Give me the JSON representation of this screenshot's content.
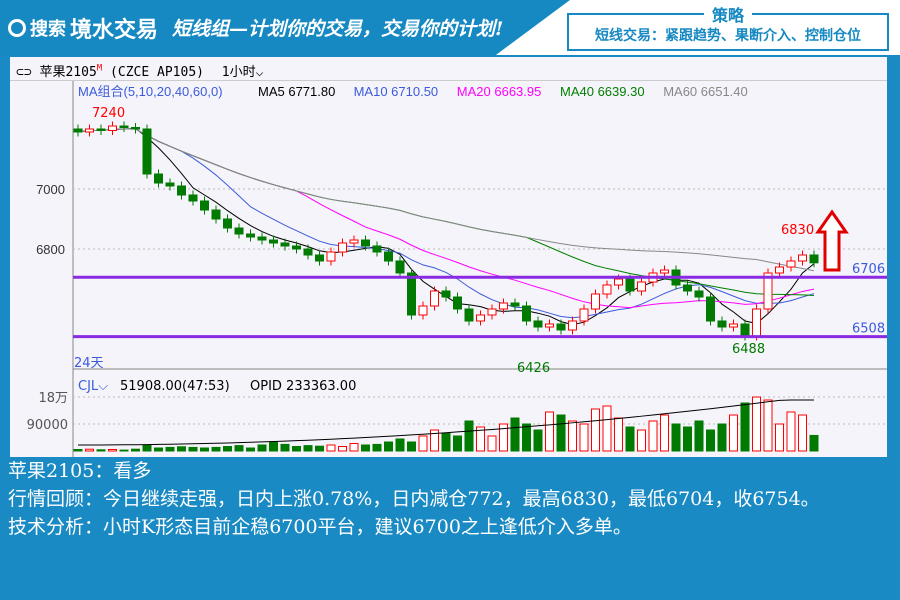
{
  "banner": {
    "logo_search": "搜索",
    "logo_brand": "境水交易",
    "slogan": "短线组—计划你的交易，交易你的计划!",
    "strategy_title": "策略",
    "strategy_text": "短线交易：紧跟趋势、果断介入、控制仓位"
  },
  "titlebar": {
    "symbol": "苹果2105",
    "mark": "M",
    "code": "(CZCE AP105)",
    "period": "1小时"
  },
  "ma_legend": {
    "combo": "MA组合(5,10,20,40,60,0)",
    "ma5": "MA5 6771.80",
    "ma10": "MA10 6710.50",
    "ma20": "MA20 6663.95",
    "ma40": "MA40 6639.30",
    "ma60": "MA60 6651.40"
  },
  "volume_legend": {
    "name": "CJL",
    "value": "51908.00(47:53)",
    "opid": "OPID 233363.00"
  },
  "colors": {
    "up": "#ff0000",
    "down": "#007a00",
    "ma5": "#000000",
    "ma10": "#3b5bdb",
    "ma20": "#ff00ff",
    "ma40": "#008000",
    "ma60": "#888888",
    "level": "#8a2be2",
    "arrow": "#e00000"
  },
  "chart_data": {
    "type": "candlestick",
    "price_ticks": [
      "7000",
      "6800"
    ],
    "volume_ticks": [
      "18万",
      "90000"
    ],
    "annotations": {
      "high": "7240",
      "low1": "6426",
      "low2": "6488",
      "recent_high": "6830",
      "level_upper": "6706",
      "level_lower": "6508",
      "days": "24天"
    },
    "levels": [
      6706,
      6508
    ],
    "closes": [
      7190,
      7200,
      7195,
      7210,
      7205,
      7200,
      7050,
      7020,
      7010,
      6980,
      6960,
      6930,
      6900,
      6870,
      6850,
      6840,
      6830,
      6820,
      6810,
      6800,
      6780,
      6760,
      6790,
      6820,
      6830,
      6810,
      6790,
      6760,
      6720,
      6580,
      6610,
      6660,
      6640,
      6600,
      6560,
      6580,
      6600,
      6620,
      6610,
      6560,
      6540,
      6550,
      6530,
      6560,
      6600,
      6650,
      6680,
      6700,
      6660,
      6690,
      6720,
      6730,
      6680,
      6660,
      6640,
      6560,
      6540,
      6550,
      6510,
      6600,
      6720,
      6740,
      6760,
      6780,
      6754
    ],
    "volumes": [
      5000,
      6000,
      4000,
      5000,
      3000,
      6000,
      20000,
      10000,
      12000,
      14000,
      12000,
      10000,
      12000,
      15000,
      18000,
      10000,
      20000,
      30000,
      22000,
      15000,
      18000,
      16000,
      20000,
      15000,
      25000,
      20000,
      22000,
      30000,
      40000,
      30000,
      50000,
      70000,
      60000,
      50000,
      100000,
      80000,
      50000,
      90000,
      110000,
      90000,
      70000,
      130000,
      120000,
      100000,
      90000,
      140000,
      150000,
      110000,
      80000,
      70000,
      100000,
      120000,
      90000,
      80000,
      100000,
      70000,
      90000,
      120000,
      160000,
      180000,
      170000,
      90000,
      130000,
      120000,
      51908
    ]
  },
  "analysis": {
    "line1": "苹果2105：看多",
    "line2": "行情回顾：今日继续走强，日内上涨0.78%，日内减仓772，最高6830，最低6704，收6754。",
    "line3": "技术分析：小时K形态目前企稳6700平台，建议6700之上逢低介入多单。"
  }
}
